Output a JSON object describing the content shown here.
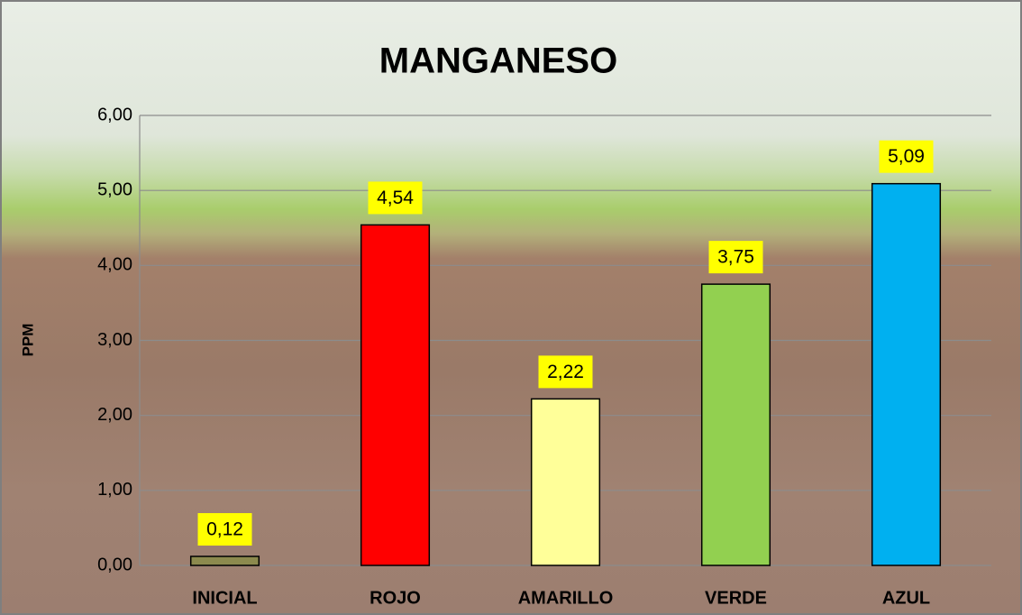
{
  "chart_data": {
    "type": "bar",
    "title": "MANGANESO",
    "y_label": "PPM",
    "categories": [
      "INICIAL",
      "ROJO",
      "AMARILLO",
      "VERDE",
      "AZUL"
    ],
    "values": [
      0.12,
      4.54,
      2.22,
      3.75,
      5.09
    ],
    "value_labels": [
      "0,12",
      "4,54",
      "2,22",
      "3,75",
      "5,09"
    ],
    "colors": [
      "#8c8a4e",
      "#ff0000",
      "#ffff99",
      "#92d050",
      "#00b0f0"
    ],
    "ylim": [
      0,
      6
    ],
    "yticks": [
      {
        "value": 0,
        "label": "0,00"
      },
      {
        "value": 1,
        "label": "1,00"
      },
      {
        "value": 2,
        "label": "2,00"
      },
      {
        "value": 3,
        "label": "3,00"
      },
      {
        "value": 4,
        "label": "4,00"
      },
      {
        "value": 5,
        "label": "5,00"
      },
      {
        "value": 6,
        "label": "6,00"
      }
    ],
    "grid": true
  }
}
